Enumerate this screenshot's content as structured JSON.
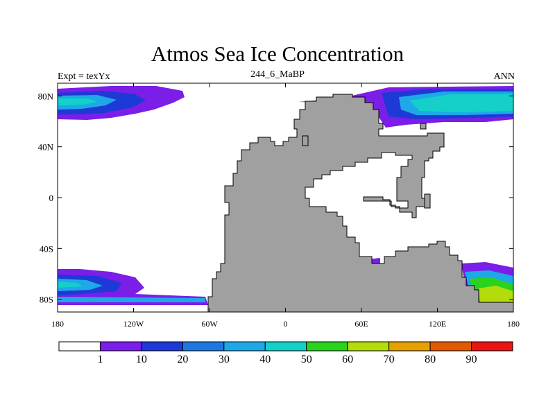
{
  "title": "Atmos Sea Ice Concentration",
  "left_label": "Expt = texYx",
  "center_label": "244_6_MaBP",
  "right_label": "ANN",
  "y_ticks": [
    "80N",
    "40N",
    "0",
    "40S",
    "80S"
  ],
  "x_ticks": [
    "180",
    "120W",
    "60W",
    "0",
    "60E",
    "120E",
    "180"
  ],
  "colorbar": {
    "labels": [
      "1",
      "10",
      "20",
      "30",
      "40",
      "50",
      "60",
      "70",
      "80",
      "90"
    ],
    "colors": [
      "#ffffff",
      "#7a1ee8",
      "#1e3ad6",
      "#1e78e0",
      "#1ea8e8",
      "#14d0c8",
      "#2ad21e",
      "#b4dc0a",
      "#e6a000",
      "#e05a00",
      "#e81414"
    ]
  },
  "land_color": "#a0a0a0",
  "chart_data": {
    "type": "heatmap",
    "title": "Atmos Sea Ice Concentration",
    "xlabel": "",
    "ylabel": "",
    "xlim": [
      -180,
      180
    ],
    "ylim": [
      -90,
      90
    ],
    "levels": [
      1,
      10,
      20,
      30,
      40,
      50,
      60,
      70,
      80,
      90
    ]
  }
}
